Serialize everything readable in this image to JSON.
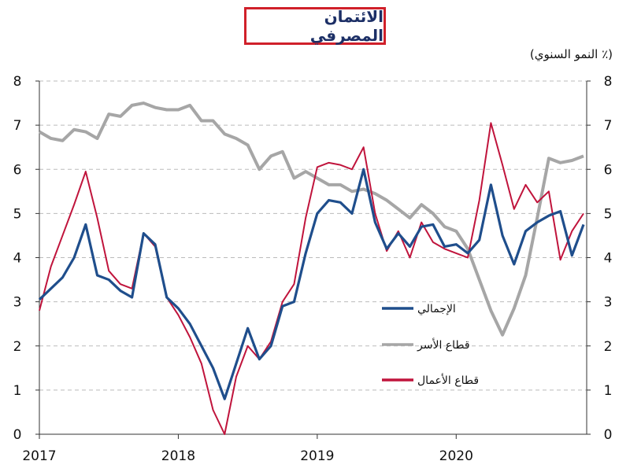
{
  "chart_data": {
    "type": "line",
    "title": "الائتمان المصرفي",
    "ylabel": "(٪ النمو السنوي)",
    "xlabel": "",
    "ylim": [
      0,
      8
    ],
    "yticks": [
      "0",
      "1",
      "2",
      "3",
      "4",
      "5",
      "6",
      "7",
      "8"
    ],
    "xticks": [
      "2017",
      "2018",
      "2019",
      "2020"
    ],
    "x_start": "2017-01",
    "x_freq": "monthly",
    "grid": "horizontal dashed",
    "legend_position": "center-right",
    "series": [
      {
        "name": "الإجمالي",
        "color": "#1f4e8c",
        "values": [
          3.05,
          3.3,
          3.55,
          4.0,
          4.75,
          3.6,
          3.5,
          3.25,
          3.1,
          4.55,
          4.3,
          3.1,
          2.85,
          2.5,
          2.0,
          1.5,
          0.8,
          1.6,
          2.4,
          1.7,
          2.0,
          2.9,
          3.0,
          4.1,
          5.0,
          5.3,
          5.25,
          5.0,
          6.0,
          4.8,
          4.2,
          4.55,
          4.25,
          4.7,
          4.75,
          4.25,
          4.3,
          4.1,
          4.4,
          5.65,
          4.5,
          3.85,
          4.6,
          4.8,
          4.95,
          5.05,
          4.05,
          4.75
        ]
      },
      {
        "name": "قطاع الأسر",
        "color": "#a6a6a6",
        "values": [
          6.85,
          6.7,
          6.65,
          6.9,
          6.85,
          6.7,
          7.25,
          7.2,
          7.45,
          7.5,
          7.4,
          7.35,
          7.35,
          7.45,
          7.1,
          7.1,
          6.8,
          6.7,
          6.55,
          6.0,
          6.3,
          6.4,
          5.8,
          5.95,
          5.8,
          5.65,
          5.65,
          5.5,
          5.55,
          5.45,
          5.3,
          5.1,
          4.9,
          5.2,
          5.0,
          4.7,
          4.6,
          4.2,
          3.5,
          2.8,
          2.25,
          2.85,
          3.6,
          4.9,
          6.25,
          6.15,
          6.2,
          6.3
        ]
      },
      {
        "name": "قطاع الأعمال",
        "color": "#c0143c",
        "values": [
          2.8,
          3.8,
          4.5,
          5.2,
          5.95,
          4.9,
          3.7,
          3.4,
          3.3,
          4.55,
          4.25,
          3.1,
          2.7,
          2.2,
          1.6,
          0.55,
          0.0,
          1.3,
          2.0,
          1.7,
          2.1,
          3.0,
          3.4,
          4.9,
          6.05,
          6.15,
          6.1,
          6.0,
          6.5,
          5.0,
          4.15,
          4.6,
          4.0,
          4.8,
          4.35,
          4.2,
          4.1,
          4.0,
          5.3,
          7.05,
          6.1,
          5.1,
          5.65,
          5.25,
          5.5,
          3.95,
          4.6,
          5.0
        ]
      }
    ]
  }
}
